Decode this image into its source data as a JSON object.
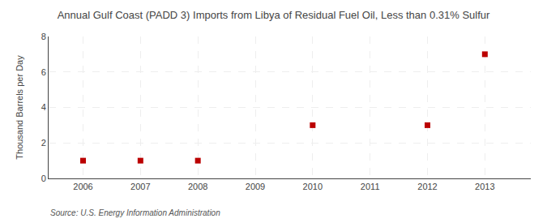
{
  "chart_data": {
    "type": "scatter",
    "title": "Annual Gulf Coast (PADD 3) Imports from Libya of Residual Fuel Oil, Less than 0.31% Sulfur",
    "ylabel": "Thousand Barrels per Day",
    "source": "Source: U.S. Energy Information Administration",
    "x": [
      2006,
      2007,
      2008,
      2010,
      2012,
      2013
    ],
    "values": [
      1,
      1,
      1,
      3,
      3,
      7
    ],
    "xlim": [
      2005.4,
      2013.8
    ],
    "ylim": [
      0,
      8
    ],
    "xticks": [
      2006,
      2007,
      2008,
      2009,
      2010,
      2011,
      2012,
      2013
    ],
    "yticks": [
      0,
      2,
      4,
      6,
      8
    ],
    "color": "#bb0000",
    "marker": "square",
    "grid": true
  }
}
